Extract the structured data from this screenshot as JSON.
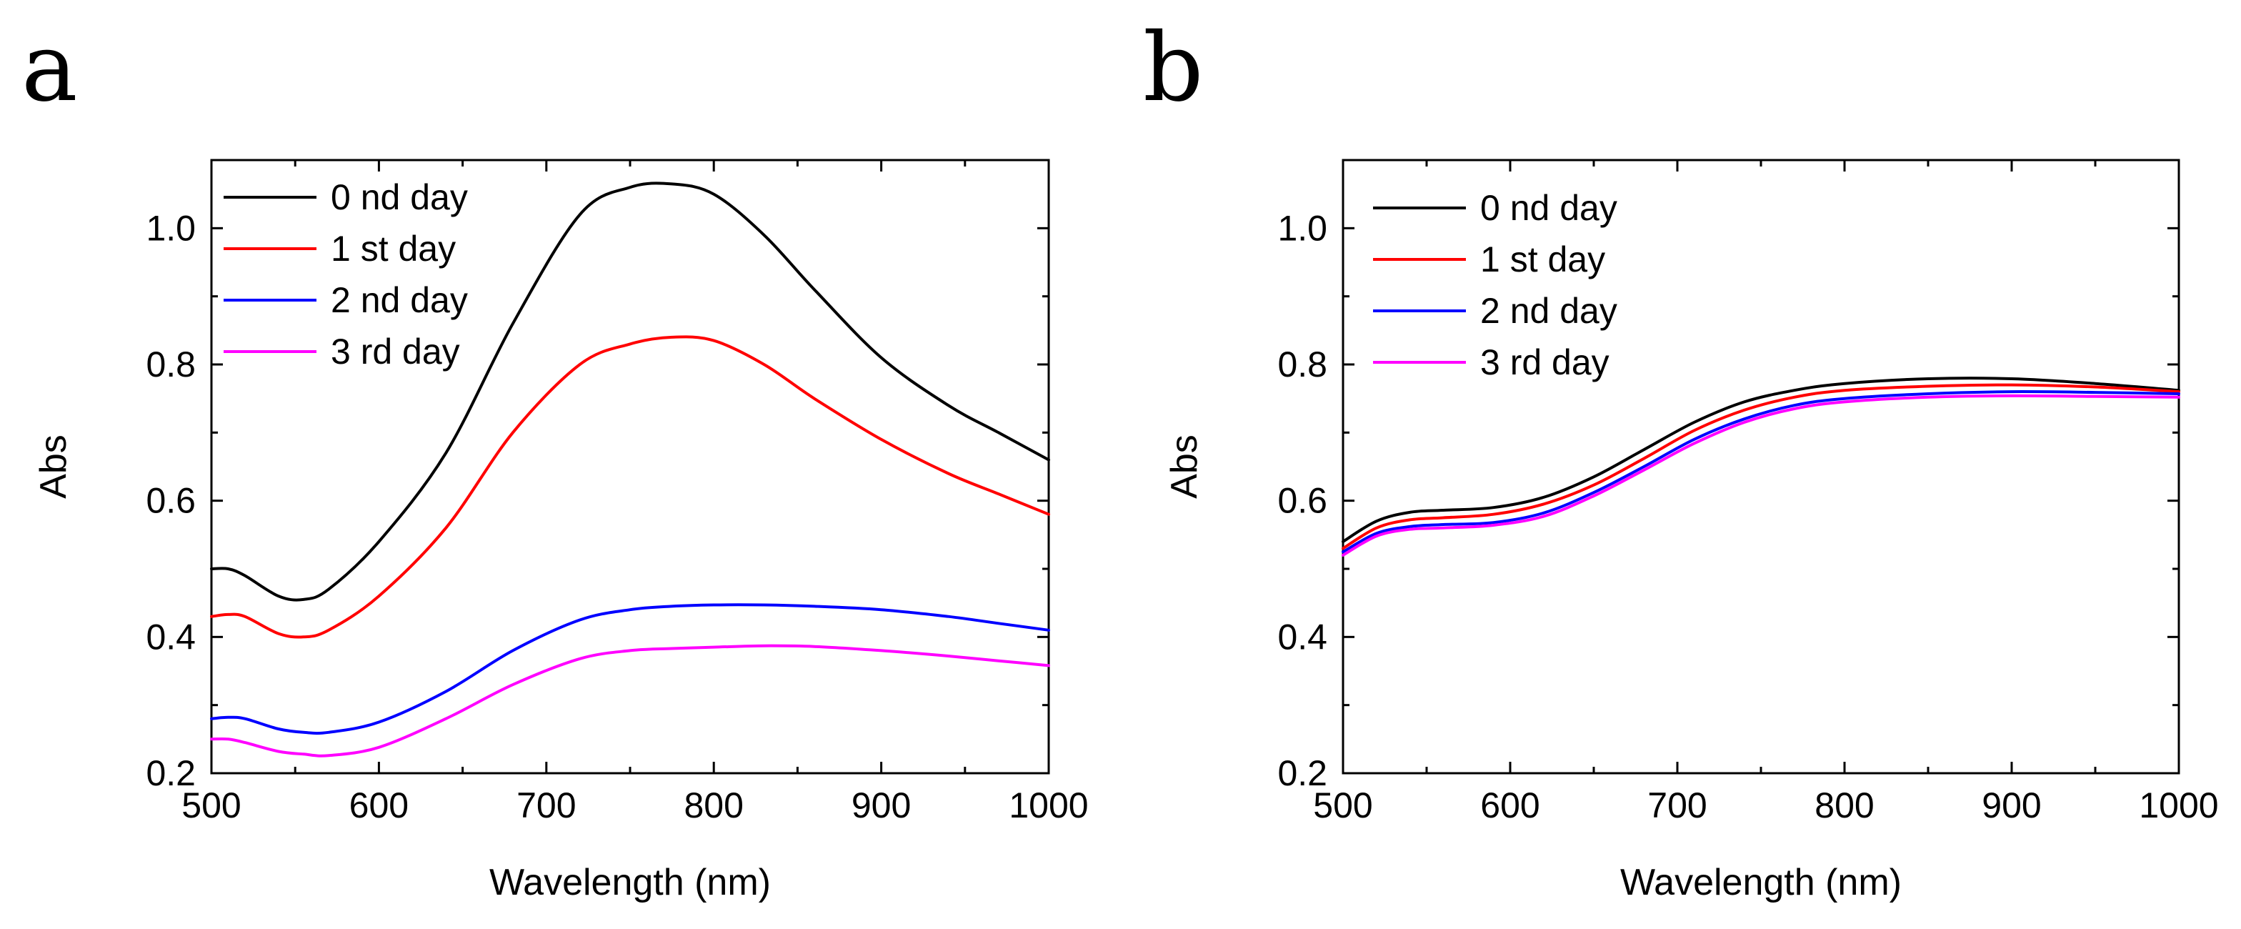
{
  "chart_data": [
    {
      "panel": "a",
      "type": "line",
      "xlabel": "Wavelength (nm)",
      "ylabel": "Abs",
      "xlim": [
        500,
        1000
      ],
      "ylim": [
        0.2,
        1.1
      ],
      "xticks": [
        500,
        600,
        700,
        800,
        900,
        1000
      ],
      "yticks": [
        0.2,
        0.4,
        0.6,
        0.8,
        1.0
      ],
      "xtick_labels": [
        "500",
        "600",
        "700",
        "800",
        "900",
        "1000"
      ],
      "ytick_labels": [
        "0.2",
        "0.4",
        "0.6",
        "0.8",
        "1.0"
      ],
      "legend_position": "top-left",
      "x": [
        500,
        510,
        520,
        540,
        555,
        570,
        600,
        640,
        680,
        720,
        750,
        775,
        800,
        830,
        860,
        900,
        940,
        970,
        1000
      ],
      "series": [
        {
          "name": "0 nd day",
          "color": "#000000",
          "values": [
            0.5,
            0.5,
            0.49,
            0.46,
            0.455,
            0.47,
            0.54,
            0.67,
            0.86,
            1.02,
            1.06,
            1.065,
            1.05,
            0.99,
            0.91,
            0.81,
            0.74,
            0.7,
            0.66
          ]
        },
        {
          "name": "1 st day",
          "color": "#ff0000",
          "values": [
            0.43,
            0.433,
            0.43,
            0.405,
            0.4,
            0.41,
            0.46,
            0.56,
            0.7,
            0.8,
            0.83,
            0.84,
            0.835,
            0.8,
            0.75,
            0.69,
            0.64,
            0.61,
            0.58
          ]
        },
        {
          "name": "2 nd day",
          "color": "#0000ff",
          "values": [
            0.28,
            0.282,
            0.28,
            0.265,
            0.26,
            0.26,
            0.275,
            0.32,
            0.38,
            0.425,
            0.44,
            0.445,
            0.447,
            0.447,
            0.445,
            0.44,
            0.43,
            0.42,
            0.41
          ]
        },
        {
          "name": "3 rd day",
          "color": "#ff00ff",
          "values": [
            0.25,
            0.25,
            0.245,
            0.232,
            0.228,
            0.226,
            0.238,
            0.28,
            0.33,
            0.368,
            0.38,
            0.383,
            0.385,
            0.387,
            0.386,
            0.38,
            0.372,
            0.365,
            0.358
          ]
        }
      ]
    },
    {
      "panel": "b",
      "type": "line",
      "xlabel": "Wavelength (nm)",
      "ylabel": "Abs",
      "xlim": [
        500,
        1000
      ],
      "ylim": [
        0.2,
        1.1
      ],
      "xticks": [
        500,
        600,
        700,
        800,
        900,
        1000
      ],
      "yticks": [
        0.2,
        0.4,
        0.6,
        0.8,
        1.0
      ],
      "xtick_labels": [
        "500",
        "600",
        "700",
        "800",
        "900",
        "1000"
      ],
      "ytick_labels": [
        "0.2",
        "0.4",
        "0.6",
        "0.8",
        "1.0"
      ],
      "legend_position": "top-left",
      "x": [
        500,
        520,
        540,
        560,
        590,
        620,
        650,
        680,
        710,
        740,
        770,
        800,
        850,
        900,
        950,
        1000
      ],
      "series": [
        {
          "name": "0 nd day",
          "color": "#000000",
          "values": [
            0.54,
            0.57,
            0.583,
            0.586,
            0.59,
            0.605,
            0.635,
            0.675,
            0.715,
            0.745,
            0.762,
            0.772,
            0.779,
            0.779,
            0.772,
            0.762
          ]
        },
        {
          "name": "1 st day",
          "color": "#ff0000",
          "values": [
            0.53,
            0.56,
            0.572,
            0.575,
            0.58,
            0.595,
            0.623,
            0.662,
            0.703,
            0.733,
            0.752,
            0.762,
            0.768,
            0.77,
            0.767,
            0.76
          ]
        },
        {
          "name": "2 nd day",
          "color": "#0000ff",
          "values": [
            0.525,
            0.552,
            0.562,
            0.565,
            0.568,
            0.582,
            0.612,
            0.65,
            0.69,
            0.72,
            0.74,
            0.75,
            0.757,
            0.76,
            0.759,
            0.757
          ]
        },
        {
          "name": "3 rd day",
          "color": "#ff00ff",
          "values": [
            0.52,
            0.548,
            0.558,
            0.56,
            0.564,
            0.577,
            0.607,
            0.645,
            0.684,
            0.715,
            0.735,
            0.745,
            0.752,
            0.754,
            0.753,
            0.752
          ]
        }
      ]
    }
  ]
}
